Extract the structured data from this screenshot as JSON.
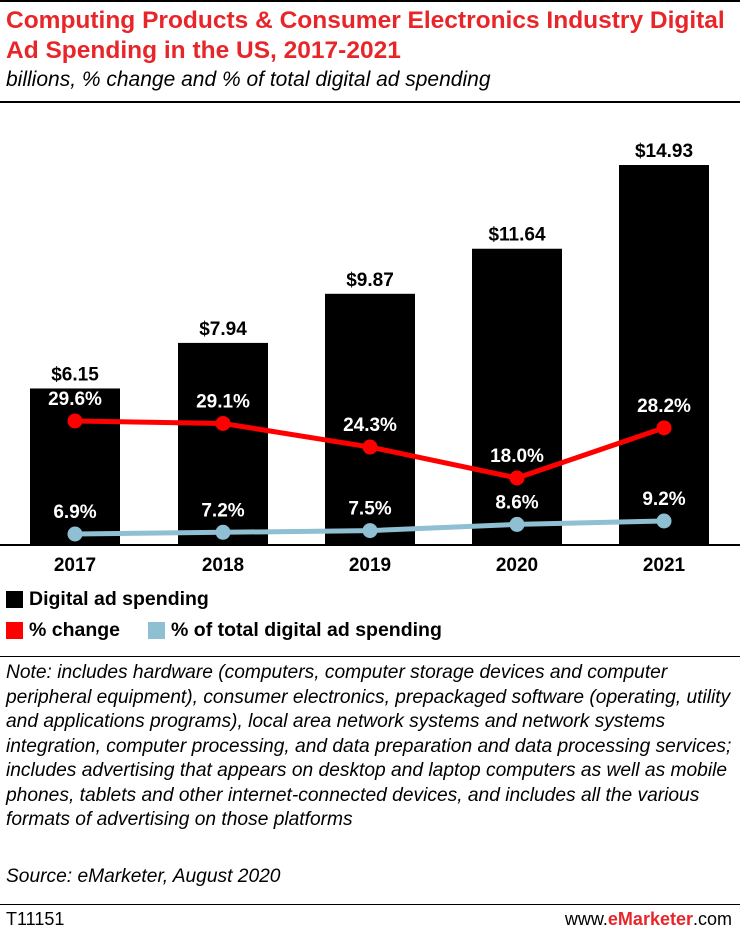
{
  "title": "Computing Products & Consumer Electronics Industry Digital Ad Spending in the US, 2017-2021",
  "subtitle": "billions, % change and % of total digital ad spending",
  "chart_data": {
    "type": "bar",
    "categories": [
      "2017",
      "2018",
      "2019",
      "2020",
      "2021"
    ],
    "series": [
      {
        "name": "Digital ad spending",
        "type": "bar",
        "color": "#000000",
        "values": [
          6.15,
          7.94,
          9.87,
          11.64,
          14.93
        ],
        "labels": [
          "$6.15",
          "$7.94",
          "$9.87",
          "$11.64",
          "$14.93"
        ]
      },
      {
        "name": "% change",
        "type": "line",
        "color": "#ff0000",
        "values": [
          29.6,
          29.1,
          24.3,
          18.0,
          28.2
        ],
        "labels": [
          "29.6%",
          "29.1%",
          "24.3%",
          "18.0%",
          "28.2%"
        ]
      },
      {
        "name": "% of total digital ad spending",
        "type": "line",
        "color": "#8fbfd3",
        "values": [
          6.9,
          7.2,
          7.5,
          8.6,
          9.2
        ],
        "labels": [
          "6.9%",
          "7.2%",
          "7.5%",
          "8.6%",
          "9.2%"
        ]
      }
    ],
    "grid": false,
    "legend": "bottom-left"
  },
  "legend": {
    "items": [
      "Digital ad spending",
      "% change",
      "% of total digital ad spending"
    ]
  },
  "note": "Note: includes hardware (computers, computer storage devices and computer peripheral equipment), consumer electronics, prepackaged software (operating, utility and applications programs), local area network systems and network systems integration, computer processing, and data preparation and data processing services; includes advertising that appears on desktop and laptop computers as well as mobile phones, tablets and other internet-connected devices, and includes all the various formats of advertising on those platforms",
  "source": "Source: eMarketer, August 2020",
  "footer": {
    "chart_id": "T11151",
    "brand_prefix": "www.",
    "brand_name": "eMarketer",
    "brand_suffix": ".com"
  }
}
